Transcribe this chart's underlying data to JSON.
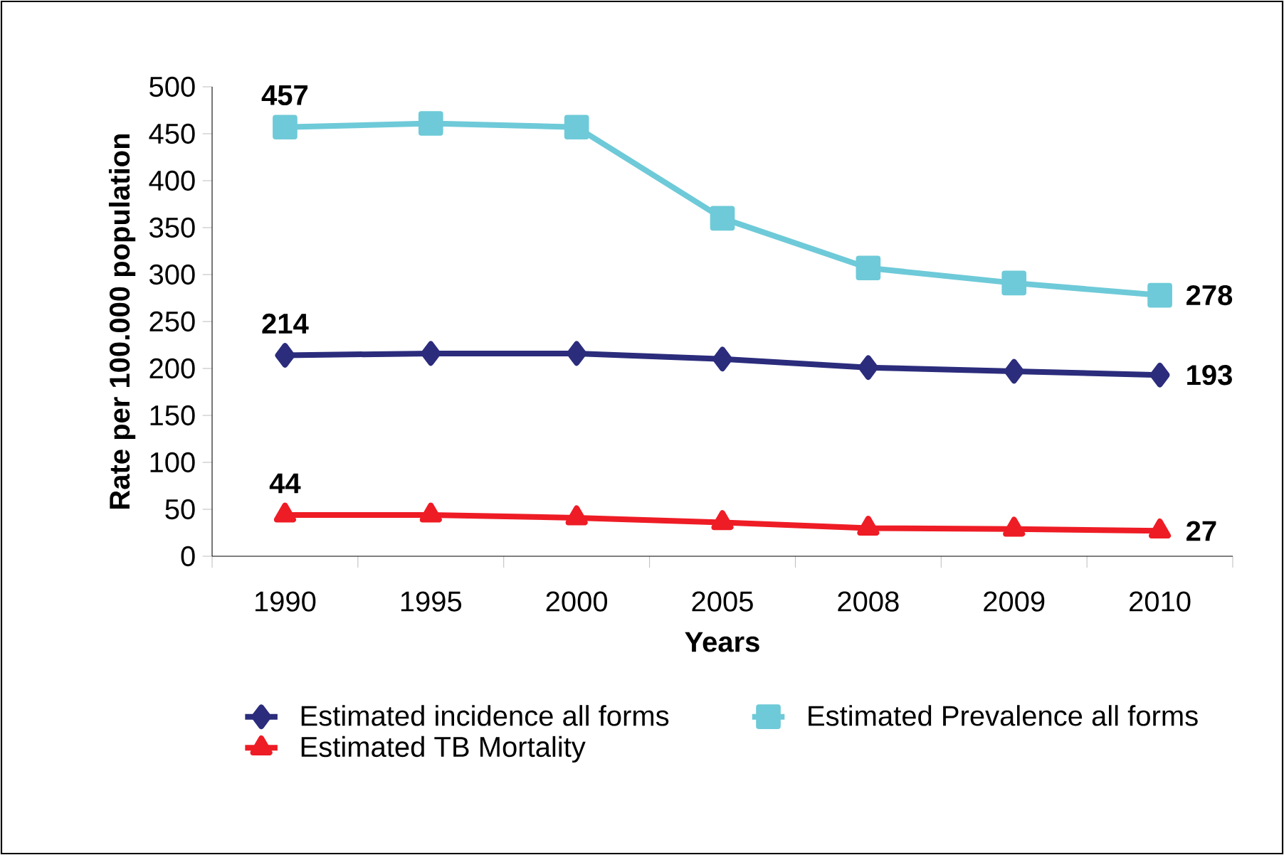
{
  "chart_data": {
    "type": "line",
    "xlabel": "Years",
    "ylabel": "Rate per 100.000 population",
    "categories": [
      "1990",
      "1995",
      "2000",
      "2005",
      "2008",
      "2009",
      "2010"
    ],
    "series": [
      {
        "name": "Estimated incidence all forms",
        "color": "#2b2c7c",
        "marker": "diamond",
        "values": [
          214,
          216,
          216,
          210,
          201,
          197,
          193
        ],
        "value_labels": [
          "214",
          null,
          null,
          null,
          null,
          null,
          "193"
        ]
      },
      {
        "name": "Estimated Prevalence all forms",
        "color": "#6ecad8",
        "marker": "square",
        "values": [
          457,
          461,
          457,
          360,
          307,
          291,
          278
        ],
        "value_labels": [
          "457",
          null,
          null,
          null,
          null,
          null,
          "278"
        ]
      },
      {
        "name": "Estimated TB Mortality",
        "color": "#ee1c25",
        "marker": "triangle",
        "values": [
          44,
          44,
          41,
          36,
          30,
          29,
          27
        ],
        "value_labels": [
          "44",
          null,
          null,
          null,
          null,
          null,
          "27"
        ]
      }
    ],
    "ylim": [
      0,
      500
    ],
    "yticks": [
      0,
      50,
      100,
      150,
      200,
      250,
      300,
      350,
      400,
      450,
      500
    ],
    "grid": false,
    "legend": "bottom",
    "line_style": "solid"
  }
}
